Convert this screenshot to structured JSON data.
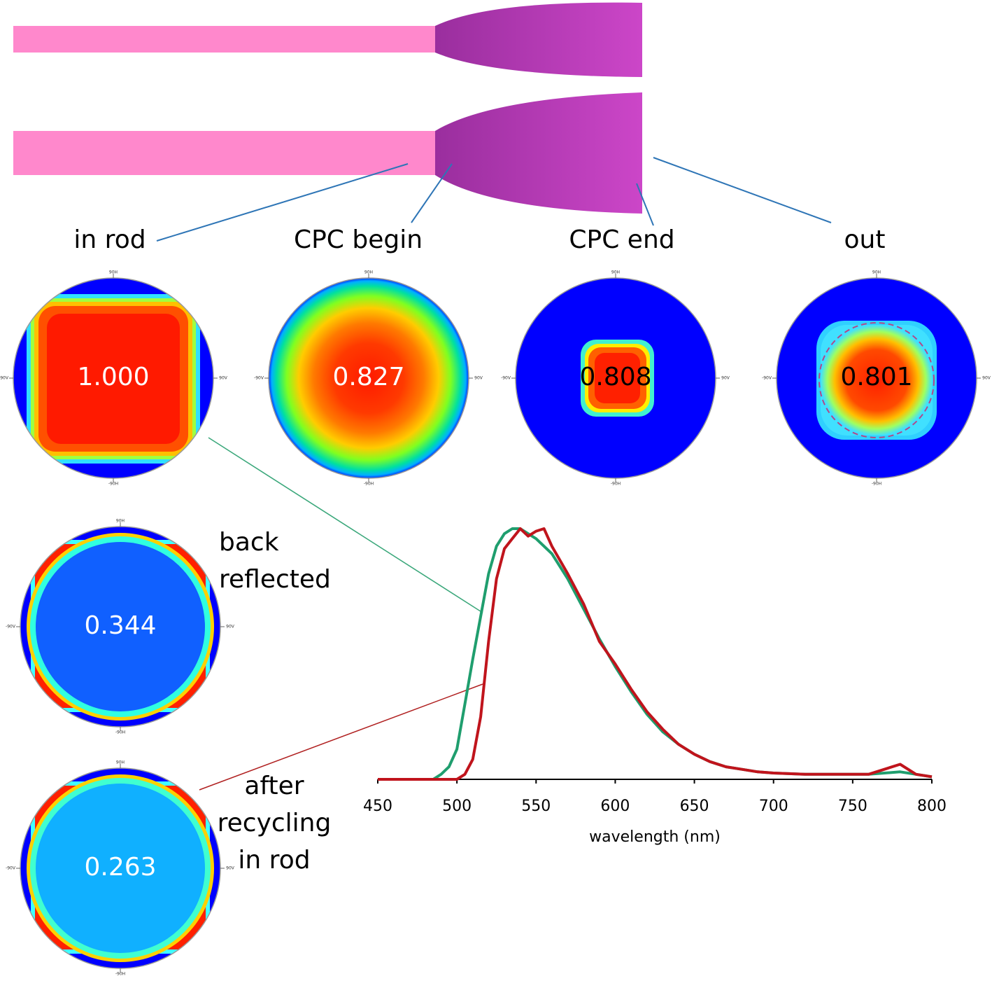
{
  "stages": [
    "in rod",
    "CPC begin",
    "CPC end",
    "out"
  ],
  "polar_axis_labels": {
    "top": "90H",
    "bottom": "-90H",
    "left": "-90V",
    "right": "90V"
  },
  "polars": [
    {
      "value": "1.000"
    },
    {
      "value": "0.827"
    },
    {
      "value": "0.808"
    },
    {
      "value": "0.801"
    },
    {
      "value": "0.344"
    },
    {
      "value": "0.263"
    }
  ],
  "back_reflected": [
    "back",
    "reflected"
  ],
  "after_recycling": [
    "after",
    "recycling",
    "in rod"
  ],
  "chart_data": {
    "type": "line",
    "x_label": "wavelength (nm)",
    "x": [
      450,
      480,
      485,
      490,
      495,
      500,
      505,
      510,
      515,
      520,
      525,
      530,
      535,
      540,
      545,
      550,
      555,
      560,
      570,
      580,
      590,
      600,
      610,
      620,
      630,
      640,
      650,
      660,
      670,
      680,
      690,
      700,
      720,
      740,
      760,
      780,
      790,
      800
    ],
    "series": [
      {
        "color": "#1f9e6e",
        "values": [
          0,
          0,
          0,
          0.02,
          0.05,
          0.12,
          0.3,
          0.48,
          0.65,
          0.82,
          0.93,
          0.98,
          1.0,
          1.0,
          0.98,
          0.96,
          0.93,
          0.9,
          0.8,
          0.68,
          0.56,
          0.45,
          0.35,
          0.26,
          0.19,
          0.14,
          0.1,
          0.07,
          0.05,
          0.04,
          0.03,
          0.025,
          0.02,
          0.02,
          0.02,
          0.03,
          0.02,
          0.01
        ]
      },
      {
        "color": "#c0141c",
        "values": [
          0,
          0,
          0,
          0,
          0,
          0,
          0.02,
          0.08,
          0.25,
          0.55,
          0.8,
          0.92,
          0.96,
          1.0,
          0.97,
          0.99,
          1.0,
          0.93,
          0.82,
          0.7,
          0.55,
          0.46,
          0.36,
          0.27,
          0.2,
          0.14,
          0.1,
          0.07,
          0.05,
          0.04,
          0.03,
          0.025,
          0.02,
          0.02,
          0.02,
          0.06,
          0.02,
          0.01
        ]
      }
    ],
    "xlim": [
      450,
      800
    ],
    "xticks": [
      450,
      500,
      550,
      600,
      650,
      700,
      750,
      800
    ],
    "ylim": [
      0,
      1
    ]
  }
}
